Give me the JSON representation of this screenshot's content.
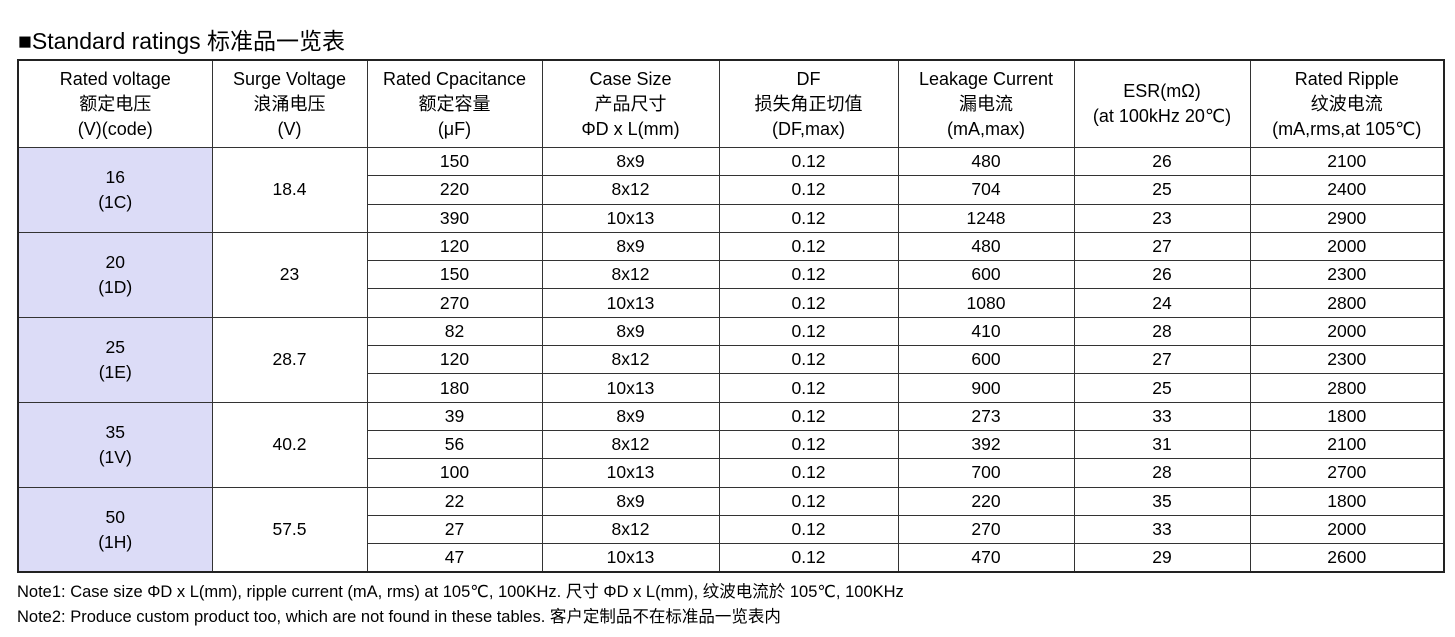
{
  "header": {
    "title": "■Standard ratings  标准品一览表"
  },
  "table": {
    "headers": [
      [
        "Rated voltage",
        "额定电压",
        "(V)(code)"
      ],
      [
        "Surge Voltage",
        "浪涌电压",
        "(V)"
      ],
      [
        "Rated Cpacitance",
        "额定容量",
        "(μF)"
      ],
      [
        "Case Size",
        "产品尺寸",
        "ΦD x L(mm)"
      ],
      [
        "DF",
        "损失角正切值",
        "(DF,max)"
      ],
      [
        "Leakage Current",
        "漏电流",
        "(mA,max)"
      ],
      [
        "ESR(mΩ)",
        "(at 100kHz 20℃)"
      ],
      [
        "Rated Ripple",
        "纹波电流",
        "(mA,rms,at 105℃)"
      ]
    ],
    "groups": [
      {
        "voltage": "16",
        "code": "(1C)",
        "surge": "18.4",
        "rows": [
          [
            "150",
            "8x9",
            "0.12",
            "480",
            "26",
            "2100"
          ],
          [
            "220",
            "8x12",
            "0.12",
            "704",
            "25",
            "2400"
          ],
          [
            "390",
            "10x13",
            "0.12",
            "1248",
            "23",
            "2900"
          ]
        ]
      },
      {
        "voltage": "20",
        "code": "(1D)",
        "surge": "23",
        "rows": [
          [
            "120",
            "8x9",
            "0.12",
            "480",
            "27",
            "2000"
          ],
          [
            "150",
            "8x12",
            "0.12",
            "600",
            "26",
            "2300"
          ],
          [
            "270",
            "10x13",
            "0.12",
            "1080",
            "24",
            "2800"
          ]
        ]
      },
      {
        "voltage": "25",
        "code": "(1E)",
        "surge": "28.7",
        "rows": [
          [
            "82",
            "8x9",
            "0.12",
            "410",
            "28",
            "2000"
          ],
          [
            "120",
            "8x12",
            "0.12",
            "600",
            "27",
            "2300"
          ],
          [
            "180",
            "10x13",
            "0.12",
            "900",
            "25",
            "2800"
          ]
        ]
      },
      {
        "voltage": "35",
        "code": "(1V)",
        "surge": "40.2",
        "rows": [
          [
            "39",
            "8x9",
            "0.12",
            "273",
            "33",
            "1800"
          ],
          [
            "56",
            "8x12",
            "0.12",
            "392",
            "31",
            "2100"
          ],
          [
            "100",
            "10x13",
            "0.12",
            "700",
            "28",
            "2700"
          ]
        ]
      },
      {
        "voltage": "50",
        "code": "(1H)",
        "surge": "57.5",
        "rows": [
          [
            "22",
            "8x9",
            "0.12",
            "220",
            "35",
            "1800"
          ],
          [
            "27",
            "8x12",
            "0.12",
            "270",
            "33",
            "2000"
          ],
          [
            "47",
            "10x13",
            "0.12",
            "470",
            "29",
            "2600"
          ]
        ]
      }
    ]
  },
  "notes": [
    "Note1: Case size ΦD x L(mm), ripple current (mA, rms) at 105℃, 100KHz.   尺寸 ΦD x L(mm), 纹波电流於 105℃, 100KHz",
    "Note2: Produce custom product too, which are not found in these tables.  客户定制品不在标准品一览表内"
  ]
}
